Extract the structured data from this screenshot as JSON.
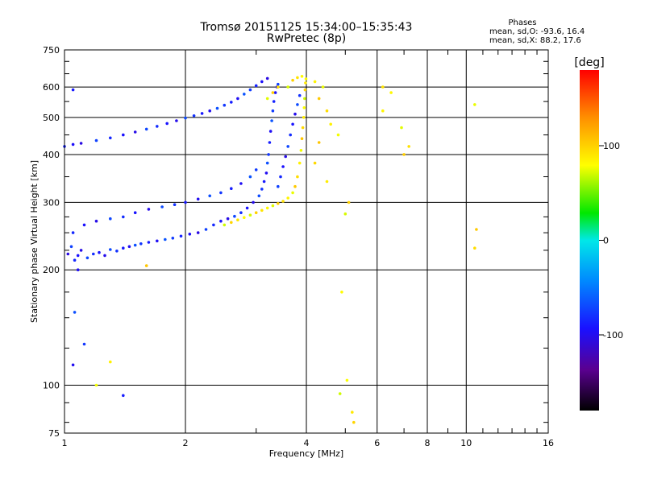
{
  "chart_data": {
    "type": "scatter",
    "title": "Tromsø 20151125 15:34:00–15:35:43",
    "subtitle": "RwPretec (8p)",
    "xlabel": "Frequency [MHz]",
    "ylabel": "Stationary phase Virtual Height [km]",
    "x_scale": "log",
    "y_scale": "log",
    "xlim": [
      1,
      16
    ],
    "ylim": [
      75,
      750
    ],
    "x_ticks": [
      1,
      2,
      4,
      6,
      8,
      10,
      16
    ],
    "x_tick_labels": [
      "1",
      "2",
      "4",
      "6",
      "8",
      "10",
      "16"
    ],
    "y_ticks": [
      75,
      100,
      200,
      300,
      400,
      500,
      600,
      750
    ],
    "y_tick_labels": [
      "75",
      "100",
      "200",
      "300",
      "400",
      "500",
      "600",
      "750"
    ],
    "grid": true,
    "phase_info": {
      "title": "Phases",
      "line_o": "mean, sd,O: -93.6, 16.4",
      "line_x": "mean, sd,X:  88.2, 17.6"
    },
    "colorbar": {
      "label": "[deg]",
      "range": [
        -180,
        180
      ],
      "ticks": [
        100,
        0,
        -100
      ],
      "tick_labels": [
        "100",
        "0",
        "-100"
      ]
    },
    "series": [
      {
        "mode": "O",
        "phase": -93.6,
        "phase_sd": 16.4,
        "points": [
          [
            1.02,
            220
          ],
          [
            1.04,
            230
          ],
          [
            1.06,
            212
          ],
          [
            1.08,
            218
          ],
          [
            1.1,
            225
          ],
          [
            1.14,
            215
          ],
          [
            1.18,
            220
          ],
          [
            1.22,
            222
          ],
          [
            1.26,
            218
          ],
          [
            1.3,
            226
          ],
          [
            1.35,
            224
          ],
          [
            1.4,
            228
          ],
          [
            1.45,
            230
          ],
          [
            1.5,
            232
          ],
          [
            1.55,
            234
          ],
          [
            1.62,
            236
          ],
          [
            1.7,
            238
          ],
          [
            1.78,
            240
          ],
          [
            1.86,
            242
          ],
          [
            1.95,
            245
          ],
          [
            2.05,
            248
          ],
          [
            2.15,
            250
          ],
          [
            2.25,
            255
          ],
          [
            2.35,
            262
          ],
          [
            2.45,
            268
          ],
          [
            2.55,
            272
          ],
          [
            2.65,
            276
          ],
          [
            2.75,
            282
          ],
          [
            2.85,
            290
          ],
          [
            2.95,
            300
          ],
          [
            3.05,
            312
          ],
          [
            3.1,
            325
          ],
          [
            3.14,
            340
          ],
          [
            3.18,
            358
          ],
          [
            3.2,
            380
          ],
          [
            3.22,
            400
          ],
          [
            3.24,
            430
          ],
          [
            3.26,
            460
          ],
          [
            3.28,
            490
          ],
          [
            3.3,
            520
          ],
          [
            3.32,
            550
          ],
          [
            3.35,
            580
          ],
          [
            3.38,
            600
          ],
          [
            3.4,
            610
          ],
          [
            1.05,
            250
          ],
          [
            1.12,
            262
          ],
          [
            1.2,
            268
          ],
          [
            1.3,
            272
          ],
          [
            1.4,
            275
          ],
          [
            1.5,
            282
          ],
          [
            1.62,
            288
          ],
          [
            1.75,
            292
          ],
          [
            1.88,
            296
          ],
          [
            2.0,
            300
          ],
          [
            2.15,
            306
          ],
          [
            2.3,
            312
          ],
          [
            2.45,
            318
          ],
          [
            2.6,
            326
          ],
          [
            2.75,
            336
          ],
          [
            2.9,
            350
          ],
          [
            3.0,
            365
          ],
          [
            1.0,
            420
          ],
          [
            1.05,
            425
          ],
          [
            1.1,
            428
          ],
          [
            1.2,
            435
          ],
          [
            1.3,
            442
          ],
          [
            1.4,
            450
          ],
          [
            1.5,
            458
          ],
          [
            1.6,
            466
          ],
          [
            1.7,
            474
          ],
          [
            1.8,
            482
          ],
          [
            1.9,
            490
          ],
          [
            2.0,
            498
          ],
          [
            2.1,
            505
          ],
          [
            2.2,
            512
          ],
          [
            2.3,
            520
          ],
          [
            2.4,
            528
          ],
          [
            2.5,
            538
          ],
          [
            2.6,
            548
          ],
          [
            2.7,
            560
          ],
          [
            2.8,
            575
          ],
          [
            2.9,
            590
          ],
          [
            3.0,
            605
          ],
          [
            3.1,
            620
          ],
          [
            3.2,
            632
          ],
          [
            3.4,
            330
          ],
          [
            3.45,
            350
          ],
          [
            3.5,
            372
          ],
          [
            3.55,
            395
          ],
          [
            3.6,
            420
          ],
          [
            3.65,
            450
          ],
          [
            3.7,
            480
          ],
          [
            3.75,
            510
          ],
          [
            3.8,
            540
          ],
          [
            3.85,
            570
          ],
          [
            1.05,
            590
          ],
          [
            1.05,
            113
          ],
          [
            1.06,
            155
          ],
          [
            1.12,
            128
          ],
          [
            1.4,
            94
          ],
          [
            1.08,
            200
          ]
        ]
      },
      {
        "mode": "X",
        "phase": 88.2,
        "phase_sd": 17.6,
        "points": [
          [
            2.5,
            262
          ],
          [
            2.6,
            266
          ],
          [
            2.7,
            270
          ],
          [
            2.8,
            274
          ],
          [
            2.9,
            278
          ],
          [
            3.0,
            282
          ],
          [
            3.1,
            286
          ],
          [
            3.2,
            290
          ],
          [
            3.3,
            294
          ],
          [
            3.4,
            298
          ],
          [
            3.5,
            302
          ],
          [
            3.6,
            308
          ],
          [
            3.7,
            318
          ],
          [
            3.75,
            330
          ],
          [
            3.8,
            350
          ],
          [
            3.85,
            380
          ],
          [
            3.88,
            410
          ],
          [
            3.9,
            440
          ],
          [
            3.92,
            470
          ],
          [
            3.94,
            500
          ],
          [
            3.95,
            530
          ],
          [
            3.96,
            560
          ],
          [
            3.97,
            590
          ],
          [
            3.98,
            615
          ],
          [
            3.99,
            630
          ],
          [
            3.6,
            600
          ],
          [
            3.7,
            625
          ],
          [
            3.8,
            635
          ],
          [
            3.9,
            640
          ],
          [
            3.2,
            560
          ],
          [
            3.3,
            580
          ],
          [
            3.4,
            600
          ],
          [
            4.2,
            620
          ],
          [
            4.4,
            600
          ],
          [
            4.3,
            560
          ],
          [
            4.5,
            520
          ],
          [
            4.6,
            480
          ],
          [
            4.8,
            450
          ],
          [
            4.3,
            430
          ],
          [
            4.2,
            380
          ],
          [
            4.5,
            340
          ],
          [
            5.05,
            103
          ],
          [
            4.85,
            95
          ],
          [
            5.25,
            80
          ],
          [
            5.2,
            85
          ],
          [
            4.9,
            175
          ],
          [
            5.0,
            280
          ],
          [
            5.1,
            300
          ],
          [
            6.2,
            600
          ],
          [
            6.5,
            580
          ],
          [
            6.9,
            470
          ],
          [
            7.0,
            400
          ],
          [
            7.2,
            420
          ],
          [
            6.2,
            520
          ],
          [
            10.5,
            540
          ],
          [
            10.6,
            255
          ],
          [
            10.5,
            228
          ],
          [
            1.3,
            115
          ],
          [
            1.2,
            100
          ],
          [
            1.6,
            205
          ]
        ]
      }
    ]
  }
}
